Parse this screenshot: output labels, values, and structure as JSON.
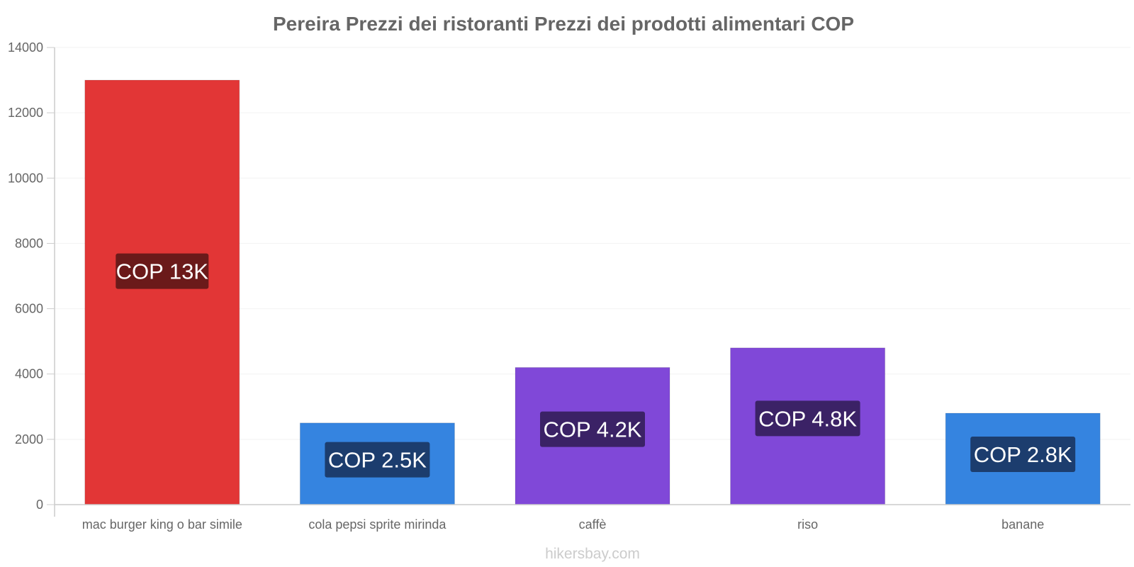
{
  "chart_data": {
    "type": "bar",
    "title": "Pereira Prezzi dei ristoranti Prezzi dei prodotti alimentari COP",
    "xlabel": "",
    "ylabel": "",
    "ylim": [
      0,
      14000
    ],
    "yticks": [
      0,
      2000,
      4000,
      6000,
      8000,
      10000,
      12000,
      14000
    ],
    "grid": true,
    "categories": [
      "mac burger king o bar simile",
      "cola pepsi sprite mirinda",
      "caffè",
      "riso",
      "banane"
    ],
    "values": [
      13000,
      2500,
      4200,
      4800,
      2800
    ],
    "data_labels": [
      "COP 13K",
      "COP 2.5K",
      "COP 4.2K",
      "COP 4.8K",
      "COP 2.8K"
    ],
    "bar_colors": [
      "#e23636",
      "#3584e0",
      "#8048d8",
      "#8048d8",
      "#3584e0"
    ],
    "label_bg_colors": [
      "#6b1a1a",
      "#1c3d6e",
      "#3b2266",
      "#3b2266",
      "#1c3d6e"
    ]
  },
  "watermark": "hikersbay.com"
}
